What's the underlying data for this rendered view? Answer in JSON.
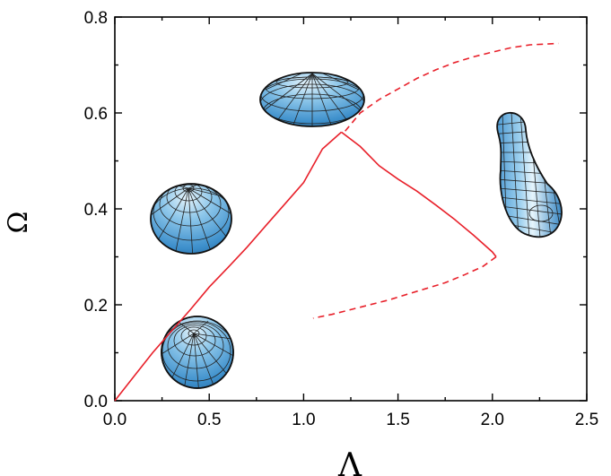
{
  "chart_data": {
    "type": "line",
    "title": "",
    "xlabel": "Λ",
    "ylabel": "Ω",
    "xlim": [
      0.0,
      2.5
    ],
    "ylim": [
      0.0,
      0.8
    ],
    "x_ticks": [
      "0.0",
      "0.5",
      "1.0",
      "1.5",
      "2.0",
      "2.5"
    ],
    "y_ticks": [
      "0.0",
      "0.2",
      "0.4",
      "0.6",
      "0.8"
    ],
    "grid": false,
    "colors": {
      "series": "#e8202a",
      "shape_fill": "#5aa8de",
      "shape_light": "#d9eef9",
      "shape_dark": "#2d7ab8"
    },
    "series": [
      {
        "style": "solid",
        "x": [
          0.0,
          0.1,
          0.2,
          0.3,
          0.4,
          0.5,
          0.6,
          0.7,
          0.8,
          0.9,
          1.0,
          1.1,
          1.2
        ],
        "y": [
          0.0,
          0.05,
          0.1,
          0.145,
          0.19,
          0.237,
          0.278,
          0.32,
          0.365,
          0.41,
          0.455,
          0.525,
          0.56
        ]
      },
      {
        "style": "solid",
        "x": [
          1.2,
          1.3,
          1.4,
          1.5,
          1.6,
          1.7,
          1.8,
          1.9,
          2.0,
          2.02
        ],
        "y": [
          0.56,
          0.53,
          0.49,
          0.462,
          0.437,
          0.408,
          0.378,
          0.345,
          0.31,
          0.3
        ]
      },
      {
        "style": "dashed",
        "x": [
          2.02,
          1.95,
          1.85,
          1.75,
          1.65,
          1.55,
          1.45,
          1.35,
          1.25,
          1.15,
          1.05
        ],
        "y": [
          0.3,
          0.28,
          0.262,
          0.246,
          0.234,
          0.222,
          0.21,
          0.2,
          0.19,
          0.18,
          0.172
        ]
      },
      {
        "style": "dashed",
        "x": [
          1.22,
          1.3,
          1.4,
          1.5,
          1.6,
          1.7,
          1.8,
          1.9,
          2.0,
          2.1,
          2.2,
          2.35
        ],
        "y": [
          0.562,
          0.6,
          0.628,
          0.65,
          0.672,
          0.69,
          0.705,
          0.717,
          0.727,
          0.736,
          0.742,
          0.745
        ]
      }
    ],
    "insets": [
      {
        "shape": "sphere",
        "at": [
          0.42,
          0.1
        ]
      },
      {
        "shape": "oblate-spheroid",
        "at": [
          0.42,
          0.4
        ]
      },
      {
        "shape": "flattened-ellipsoid",
        "at": [
          1.12,
          0.63
        ]
      },
      {
        "shape": "peanut-triaxial",
        "at": [
          2.15,
          0.42
        ]
      }
    ]
  }
}
